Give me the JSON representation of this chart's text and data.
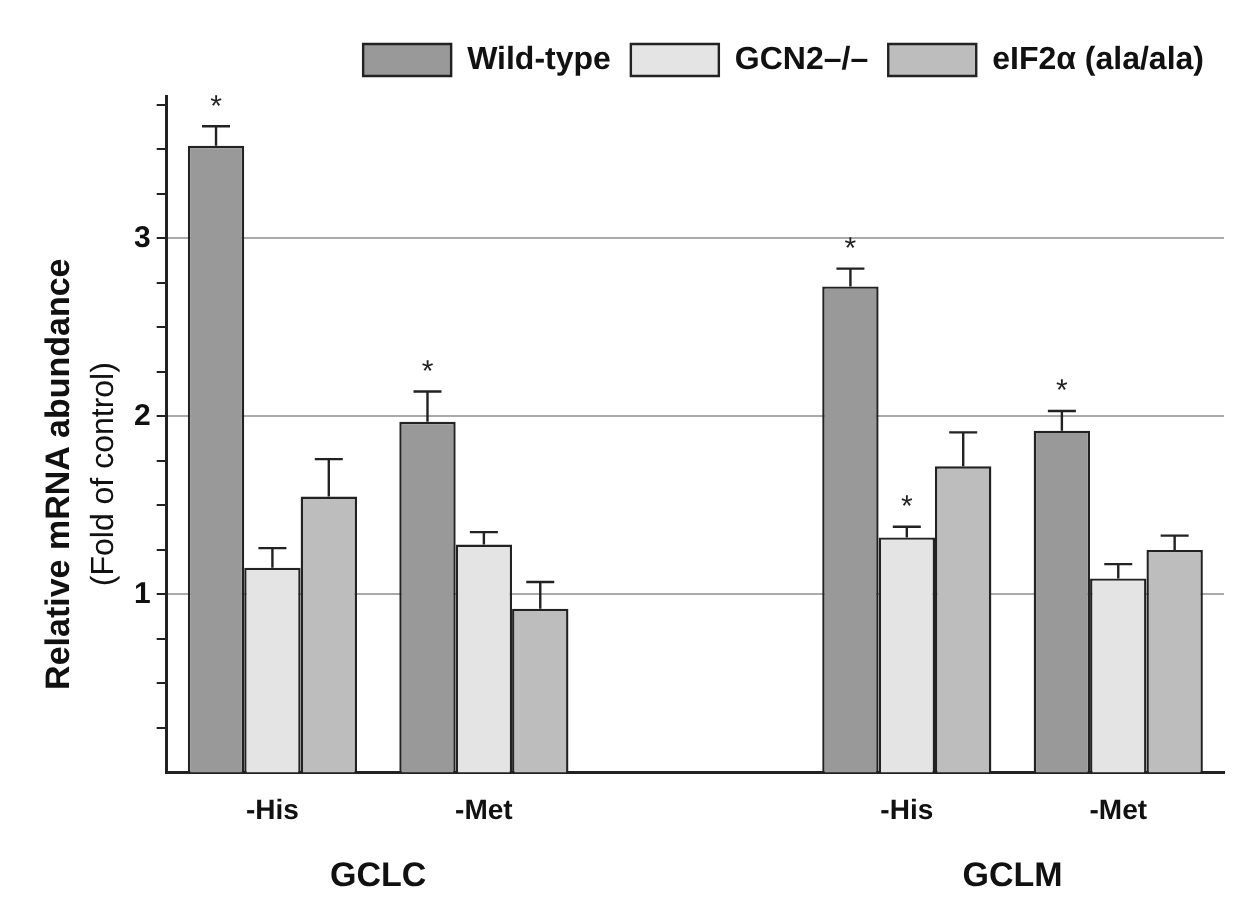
{
  "chart_data": {
    "type": "bar",
    "ylabel": "Relative mRNA abundance\n(Fold of control)",
    "categories": [
      "-His",
      "-Met",
      null,
      "-His",
      "-Met"
    ],
    "annotations": [
      "GCLC",
      "GCLM"
    ],
    "series": [
      {
        "name": "Wild-type",
        "color": "#999999",
        "values": [
          3.52,
          1.97,
          null,
          2.73,
          1.92
        ],
        "errors": [
          [
            3.52,
            3.63
          ],
          [
            1.97,
            2.14
          ],
          null,
          [
            2.73,
            2.83
          ],
          [
            1.92,
            2.03
          ]
        ],
        "value_labels": [
          "*",
          "*",
          null,
          "*",
          "*"
        ]
      },
      {
        "name": "GCN2–/–",
        "color": "#e4e4e4",
        "values": [
          1.15,
          1.28,
          null,
          1.32,
          1.09
        ],
        "errors": [
          [
            1.15,
            1.26
          ],
          [
            1.28,
            1.35
          ],
          null,
          [
            1.32,
            1.38
          ],
          [
            1.09,
            1.17
          ]
        ],
        "value_labels": [
          null,
          null,
          null,
          "*",
          null
        ]
      },
      {
        "name": "eIF2α (ala/ala)",
        "color": "#bdbdbd",
        "values": [
          1.55,
          0.92,
          null,
          1.72,
          1.25
        ],
        "errors": [
          [
            1.55,
            1.76
          ],
          [
            0.92,
            1.07
          ],
          null,
          [
            1.72,
            1.91
          ],
          [
            1.25,
            1.33
          ]
        ],
        "value_labels": [
          null,
          null,
          null,
          null,
          null
        ]
      }
    ],
    "ylim": [
      0,
      3.8
    ],
    "yticks": [
      {
        "value": 0.25,
        "label": null
      },
      {
        "value": 0.5,
        "label": null
      },
      {
        "value": 0.75,
        "label": null
      },
      1,
      {
        "value": 1.25,
        "label": null
      },
      {
        "value": 1.5,
        "label": null
      },
      {
        "value": 1.75,
        "label": null
      },
      2,
      {
        "value": 2.25,
        "label": null
      },
      {
        "value": 2.5,
        "label": null
      },
      {
        "value": 2.75,
        "label": null
      },
      3,
      {
        "value": 3.25,
        "label": null
      },
      {
        "value": 3.5,
        "label": null
      },
      {
        "value": 3.75,
        "label": null
      }
    ],
    "grid": "y",
    "legend": "top right"
  }
}
